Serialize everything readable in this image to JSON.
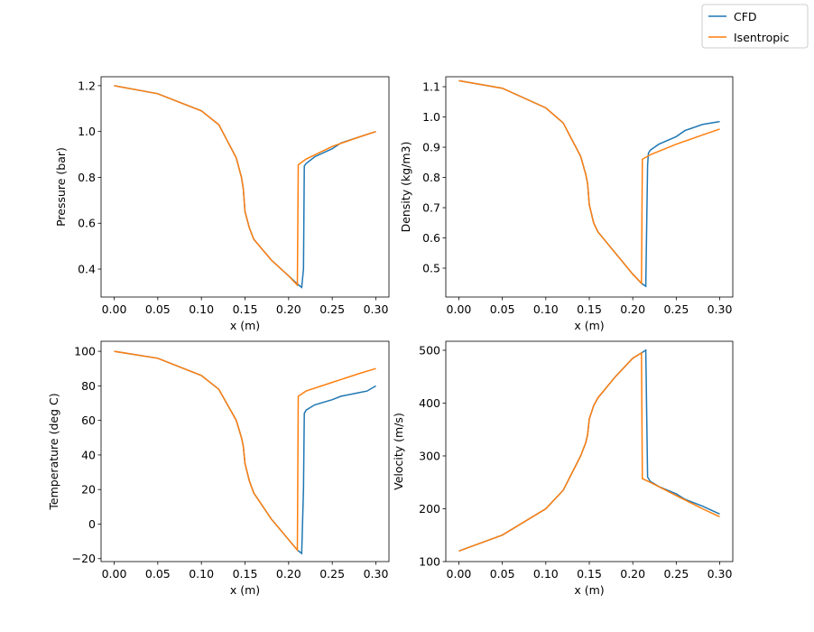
{
  "chart_data": {
    "type": "line",
    "legend": {
      "placement": "top-right",
      "entries": [
        "CFD",
        "Isentropic"
      ]
    },
    "colors": {
      "CFD": "#1f77b4",
      "Isentropic": "#ff7f0e"
    },
    "subplots": [
      {
        "id": "pressure",
        "xlabel": "x (m)",
        "ylabel": "Pressure (bar)",
        "xlim": [
          -0.015,
          0.315
        ],
        "ylim": [
          0.278,
          1.239
        ],
        "xticks": [
          0,
          0.05,
          0.1,
          0.15,
          0.2,
          0.25,
          0.3
        ],
        "xtick_labels": [
          "0.00",
          "0.05",
          "0.10",
          "0.15",
          "0.20",
          "0.25",
          "0.30"
        ],
        "yticks": [
          0.4,
          0.6,
          0.8,
          1.0,
          1.2
        ],
        "ytick_labels": [
          "0.4",
          "0.6",
          "0.8",
          "1.0",
          "1.2"
        ],
        "series": [
          {
            "name": "CFD",
            "x": [
              0,
              0.05,
              0.1,
              0.12,
              0.14,
              0.146,
              0.148,
              0.15,
              0.155,
              0.16,
              0.18,
              0.2,
              0.21,
              0.215,
              0.217,
              0.218,
              0.22,
              0.23,
              0.25,
              0.26,
              0.28,
              0.3
            ],
            "y": [
              1.2,
              1.165,
              1.09,
              1.03,
              0.885,
              0.8,
              0.75,
              0.65,
              0.58,
              0.53,
              0.44,
              0.37,
              0.335,
              0.32,
              0.4,
              0.85,
              0.86,
              0.89,
              0.925,
              0.95,
              0.975,
              1.0
            ]
          },
          {
            "name": "Isentropic",
            "x": [
              0,
              0.05,
              0.1,
              0.12,
              0.14,
              0.146,
              0.148,
              0.15,
              0.155,
              0.16,
              0.18,
              0.2,
              0.21,
              0.211,
              0.22,
              0.25,
              0.28,
              0.3
            ],
            "y": [
              1.2,
              1.165,
              1.09,
              1.03,
              0.885,
              0.8,
              0.75,
              0.65,
              0.58,
              0.53,
              0.44,
              0.37,
              0.33,
              0.855,
              0.88,
              0.935,
              0.975,
              1.0
            ]
          }
        ]
      },
      {
        "id": "density",
        "xlabel": "x (m)",
        "ylabel": "Density (kg/m3)",
        "xlim": [
          -0.015,
          0.315
        ],
        "ylim": [
          0.4045,
          1.133
        ],
        "xticks": [
          0,
          0.05,
          0.1,
          0.15,
          0.2,
          0.25,
          0.3
        ],
        "xtick_labels": [
          "0.00",
          "0.05",
          "0.10",
          "0.15",
          "0.20",
          "0.25",
          "0.30"
        ],
        "yticks": [
          0.5,
          0.6,
          0.7,
          0.8,
          0.9,
          1.0,
          1.1
        ],
        "ytick_labels": [
          "0.5",
          "0.6",
          "0.7",
          "0.8",
          "0.9",
          "1.0",
          "1.1"
        ],
        "series": [
          {
            "name": "CFD",
            "x": [
              0,
              0.05,
              0.1,
              0.12,
              0.14,
              0.146,
              0.148,
              0.15,
              0.155,
              0.16,
              0.18,
              0.2,
              0.21,
              0.215,
              0.217,
              0.218,
              0.22,
              0.23,
              0.25,
              0.26,
              0.28,
              0.3
            ],
            "y": [
              1.12,
              1.095,
              1.03,
              0.98,
              0.87,
              0.81,
              0.78,
              0.71,
              0.65,
              0.62,
              0.55,
              0.48,
              0.45,
              0.44,
              0.84,
              0.88,
              0.89,
              0.91,
              0.935,
              0.955,
              0.975,
              0.985
            ]
          },
          {
            "name": "Isentropic",
            "x": [
              0,
              0.05,
              0.1,
              0.12,
              0.14,
              0.146,
              0.148,
              0.15,
              0.155,
              0.16,
              0.18,
              0.2,
              0.21,
              0.211,
              0.22,
              0.25,
              0.28,
              0.3
            ],
            "y": [
              1.12,
              1.095,
              1.03,
              0.98,
              0.87,
              0.81,
              0.78,
              0.71,
              0.65,
              0.62,
              0.55,
              0.48,
              0.45,
              0.86,
              0.875,
              0.91,
              0.94,
              0.96
            ]
          }
        ]
      },
      {
        "id": "temperature",
        "xlabel": "x (m)",
        "ylabel": "Temperature (deg C)",
        "xlim": [
          -0.015,
          0.315
        ],
        "ylim": [
          -21.7,
          105.8
        ],
        "xticks": [
          0,
          0.05,
          0.1,
          0.15,
          0.2,
          0.25,
          0.3
        ],
        "xtick_labels": [
          "0.00",
          "0.05",
          "0.10",
          "0.15",
          "0.20",
          "0.25",
          "0.30"
        ],
        "yticks": [
          -20,
          0,
          20,
          40,
          60,
          80,
          100
        ],
        "ytick_labels": [
          "−20",
          "0",
          "20",
          "40",
          "60",
          "80",
          "100"
        ],
        "series": [
          {
            "name": "CFD",
            "x": [
              0,
              0.05,
              0.1,
              0.12,
              0.14,
              0.146,
              0.148,
              0.15,
              0.155,
              0.16,
              0.18,
              0.2,
              0.21,
              0.215,
              0.217,
              0.218,
              0.22,
              0.23,
              0.25,
              0.26,
              0.28,
              0.29,
              0.3
            ],
            "y": [
              100,
              96,
              86,
              78,
              60,
              50,
              45,
              35,
              25,
              18,
              3,
              -9,
              -15,
              -17,
              20,
              64,
              66,
              69,
              72,
              74,
              76,
              77,
              80
            ]
          },
          {
            "name": "Isentropic",
            "x": [
              0,
              0.05,
              0.1,
              0.12,
              0.14,
              0.146,
              0.148,
              0.15,
              0.155,
              0.16,
              0.18,
              0.2,
              0.21,
              0.211,
              0.22,
              0.25,
              0.28,
              0.3
            ],
            "y": [
              100,
              96,
              86,
              78,
              60,
              50,
              45,
              35,
              25,
              18,
              3,
              -9,
              -15,
              74,
              77,
              82,
              87,
              90
            ]
          }
        ]
      },
      {
        "id": "velocity",
        "xlabel": "x (m)",
        "ylabel": "Velocity (m/s)",
        "xlim": [
          -0.015,
          0.315
        ],
        "ylim": [
          100,
          517
        ],
        "xticks": [
          0,
          0.05,
          0.1,
          0.15,
          0.2,
          0.25,
          0.3
        ],
        "xtick_labels": [
          "0.00",
          "0.05",
          "0.10",
          "0.15",
          "0.20",
          "0.25",
          "0.30"
        ],
        "yticks": [
          100,
          200,
          300,
          400,
          500
        ],
        "ytick_labels": [
          "100",
          "200",
          "300",
          "400",
          "500"
        ],
        "series": [
          {
            "name": "CFD",
            "x": [
              0,
              0.05,
              0.1,
              0.12,
              0.14,
              0.146,
              0.148,
              0.15,
              0.155,
              0.16,
              0.18,
              0.2,
              0.21,
              0.215,
              0.217,
              0.22,
              0.23,
              0.25,
              0.26,
              0.28,
              0.3
            ],
            "y": [
              120,
              150,
              200,
              235,
              300,
              325,
              340,
              370,
              395,
              410,
              450,
              485,
              495,
              500,
              260,
              252,
              242,
              228,
              218,
              205,
              190
            ]
          },
          {
            "name": "Isentropic",
            "x": [
              0,
              0.05,
              0.1,
              0.12,
              0.14,
              0.146,
              0.148,
              0.15,
              0.155,
              0.16,
              0.18,
              0.2,
              0.21,
              0.211,
              0.22,
              0.25,
              0.28,
              0.3
            ],
            "y": [
              120,
              150,
              200,
              235,
              300,
              325,
              340,
              370,
              395,
              410,
              450,
              485,
              495,
              257,
              250,
              225,
              200,
              185
            ]
          }
        ]
      }
    ]
  }
}
